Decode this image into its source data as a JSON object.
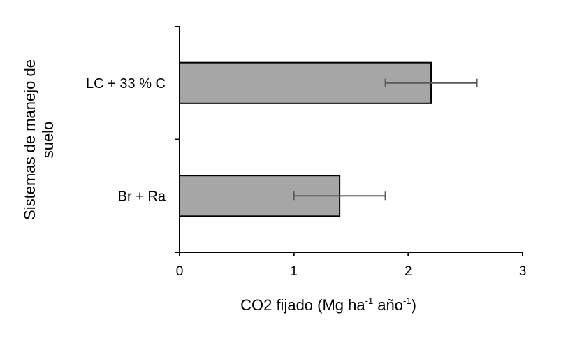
{
  "chart_data": {
    "type": "bar",
    "orientation": "horizontal",
    "categories": [
      "LC + 33 % C",
      "Br + Ra"
    ],
    "values": [
      2.2,
      1.4
    ],
    "error_low": [
      1.8,
      1.0
    ],
    "error_high": [
      2.6,
      1.8
    ],
    "xlim": [
      0,
      3
    ],
    "xticks": [
      "0",
      "1",
      "2",
      "3"
    ],
    "xlabel_main": "CO2  fijado (Mg ha",
    "xlabel_sup1": "-1",
    "xlabel_mid": " año",
    "xlabel_sup2": "-1",
    "xlabel_end": ")",
    "ylabel_line1": "Sistemas de manejo de",
    "ylabel_line2": "suelo",
    "grid": false,
    "colors": {
      "bar_fill": "#a6a6a6",
      "bar_stroke": "#000000",
      "error_bar": "#595959",
      "axis": "#000000"
    }
  }
}
